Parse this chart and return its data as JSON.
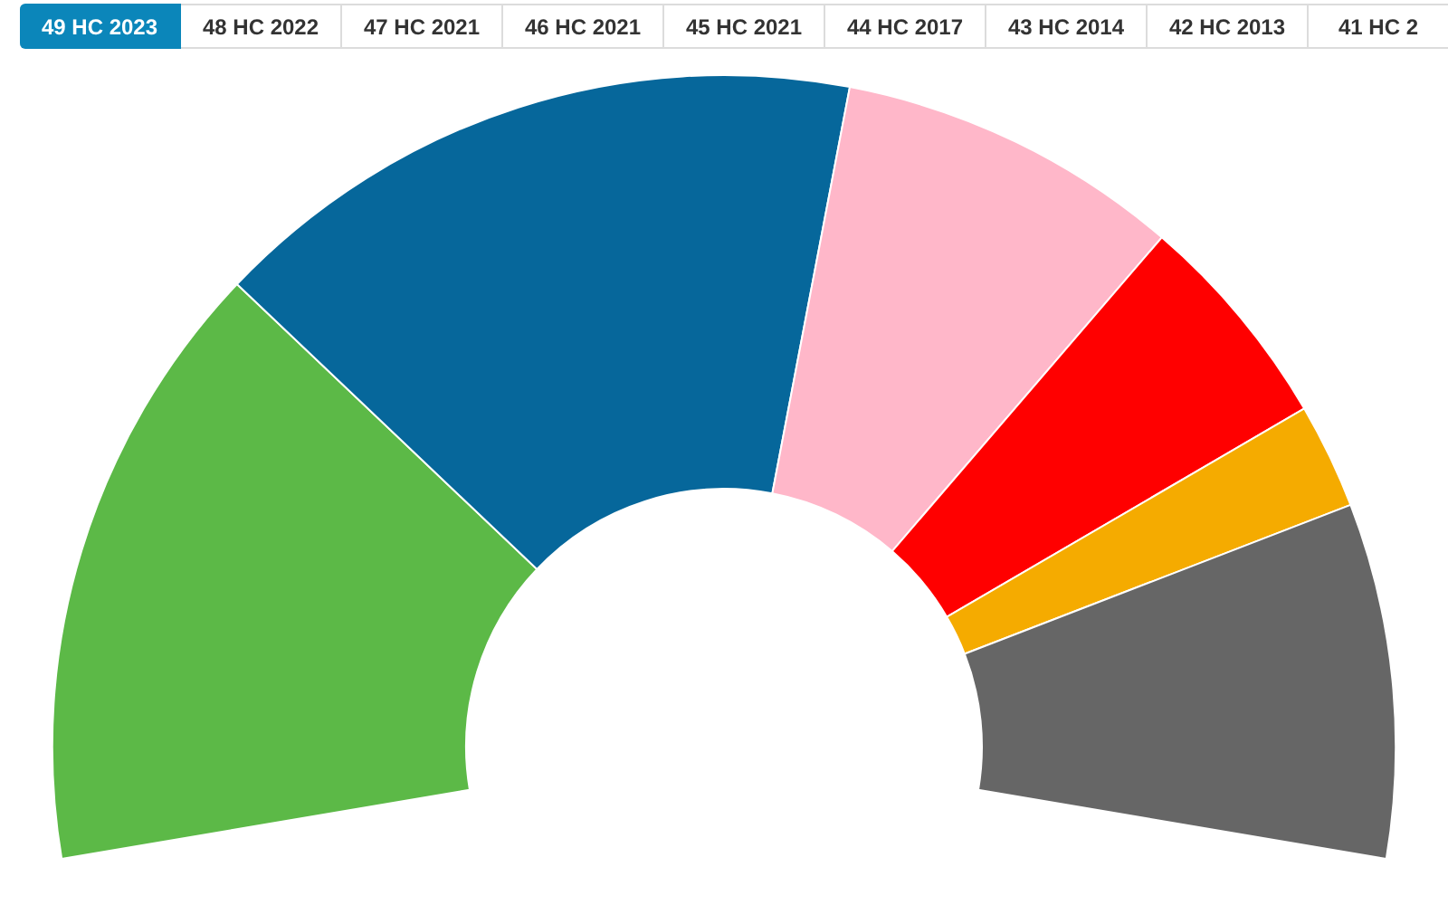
{
  "chart_data": {
    "type": "donut",
    "title": "49 HC 2023",
    "annotations": [
      "48 HC 2022",
      "47 HC 2021",
      "46 HC 2021",
      "45 HC 2021",
      "44 HC 2017",
      "43 HC 2014",
      "42 HC 2013",
      "41 HC 2"
    ],
    "categories": [
      null,
      null,
      null,
      null,
      null,
      null
    ],
    "values": [
      26.67,
      28.75,
      15,
      9.58,
      4.58,
      15.42
    ],
    "colors": [
      "#5cb947",
      "#06679b",
      "#ffb7c9",
      "#ff0000",
      "#f5ab00",
      "#666666"
    ]
  }
}
